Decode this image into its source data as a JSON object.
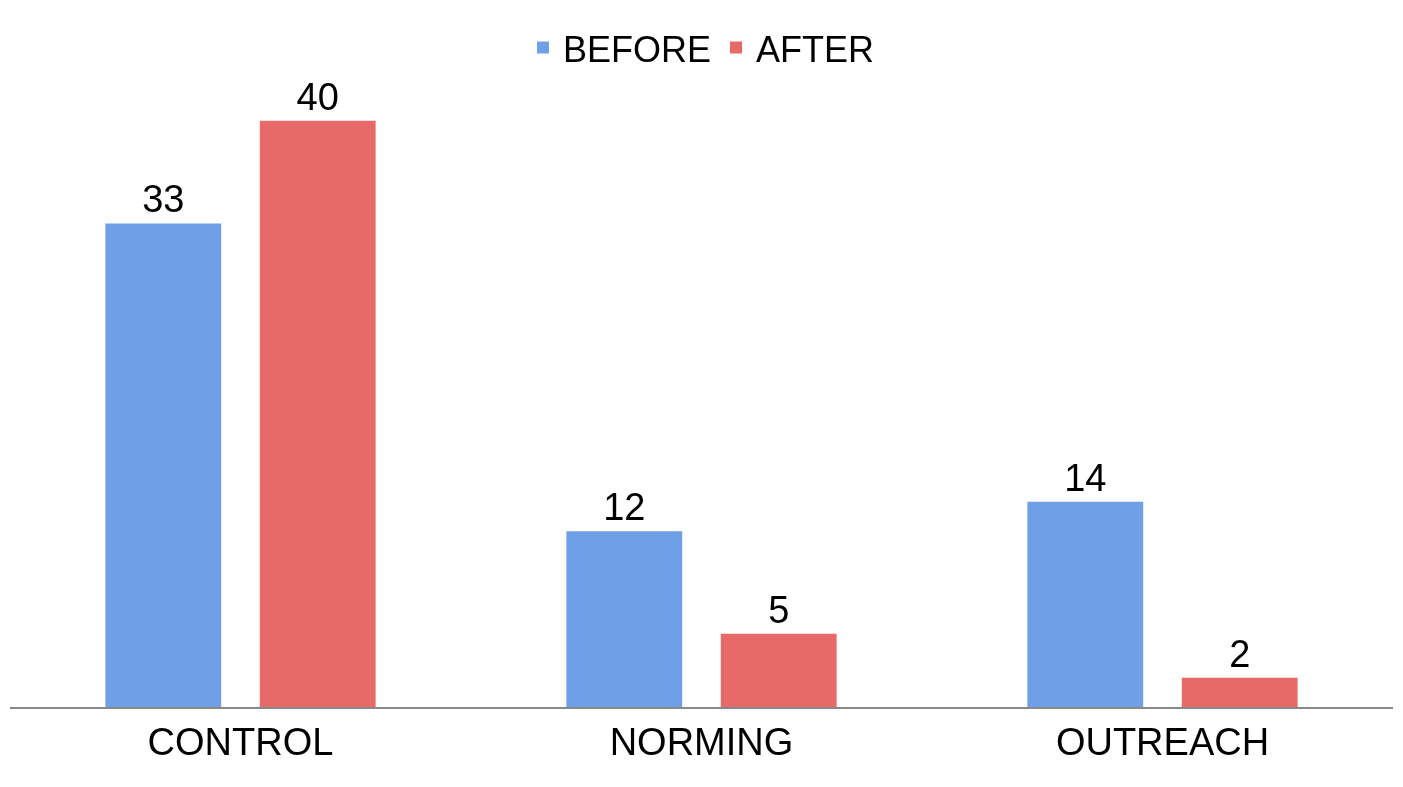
{
  "chart_data": {
    "type": "bar",
    "categories": [
      "CONTROL",
      "NORMING",
      "OUTREACH"
    ],
    "series": [
      {
        "name": "BEFORE",
        "color": "#6f9fe6",
        "values": [
          33,
          12,
          14
        ]
      },
      {
        "name": "AFTER",
        "color": "#e86a68",
        "values": [
          40,
          5,
          2
        ]
      }
    ],
    "data_labels": true,
    "legend": "top"
  }
}
